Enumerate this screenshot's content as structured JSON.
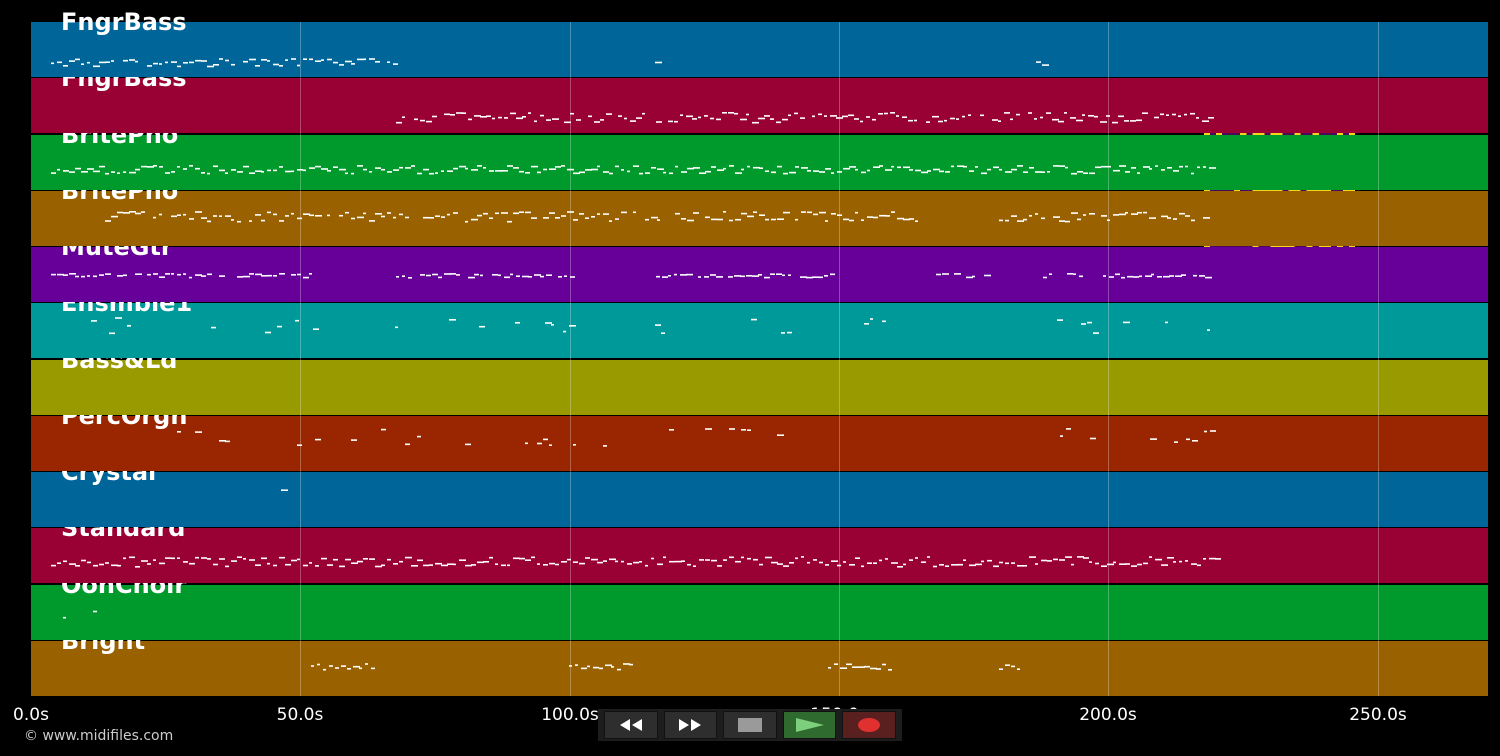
{
  "tracks": [
    {
      "name": "FngrBass",
      "color": "#006599"
    },
    {
      "name": "FngrBass",
      "color": "#990033"
    },
    {
      "name": "BritePno",
      "color": "#00992b"
    },
    {
      "name": "BritePno",
      "color": "#996100"
    },
    {
      "name": "MuteGtr",
      "color": "#660099"
    },
    {
      "name": "Ensmble1",
      "color": "#009999"
    },
    {
      "name": "Bass&Ld",
      "color": "#999900"
    },
    {
      "name": "PercOrgn",
      "color": "#992600"
    },
    {
      "name": "Crystal",
      "color": "#006599"
    },
    {
      "name": "Standard",
      "color": "#990033"
    },
    {
      "name": "OohChoir",
      "color": "#00992b"
    },
    {
      "name": "Bright",
      "color": "#996100"
    }
  ],
  "timeline": {
    "ticks": [
      "0.0s",
      "50.0s",
      "100.0s",
      "150.0s",
      "200.0s",
      "250.0s"
    ]
  },
  "copyright": "© www.midifiles.com",
  "transport": {
    "rewind_icon": "rewind-icon",
    "forward_icon": "fast-forward-icon",
    "stop_icon": "stop-icon",
    "play_icon": "play-icon",
    "record_icon": "record-icon",
    "play_color": "#7ccf7c",
    "record_color": "#e03030"
  },
  "qr_colors": {
    "fg": "#4a0a5a",
    "bg": "#f5d41a"
  }
}
